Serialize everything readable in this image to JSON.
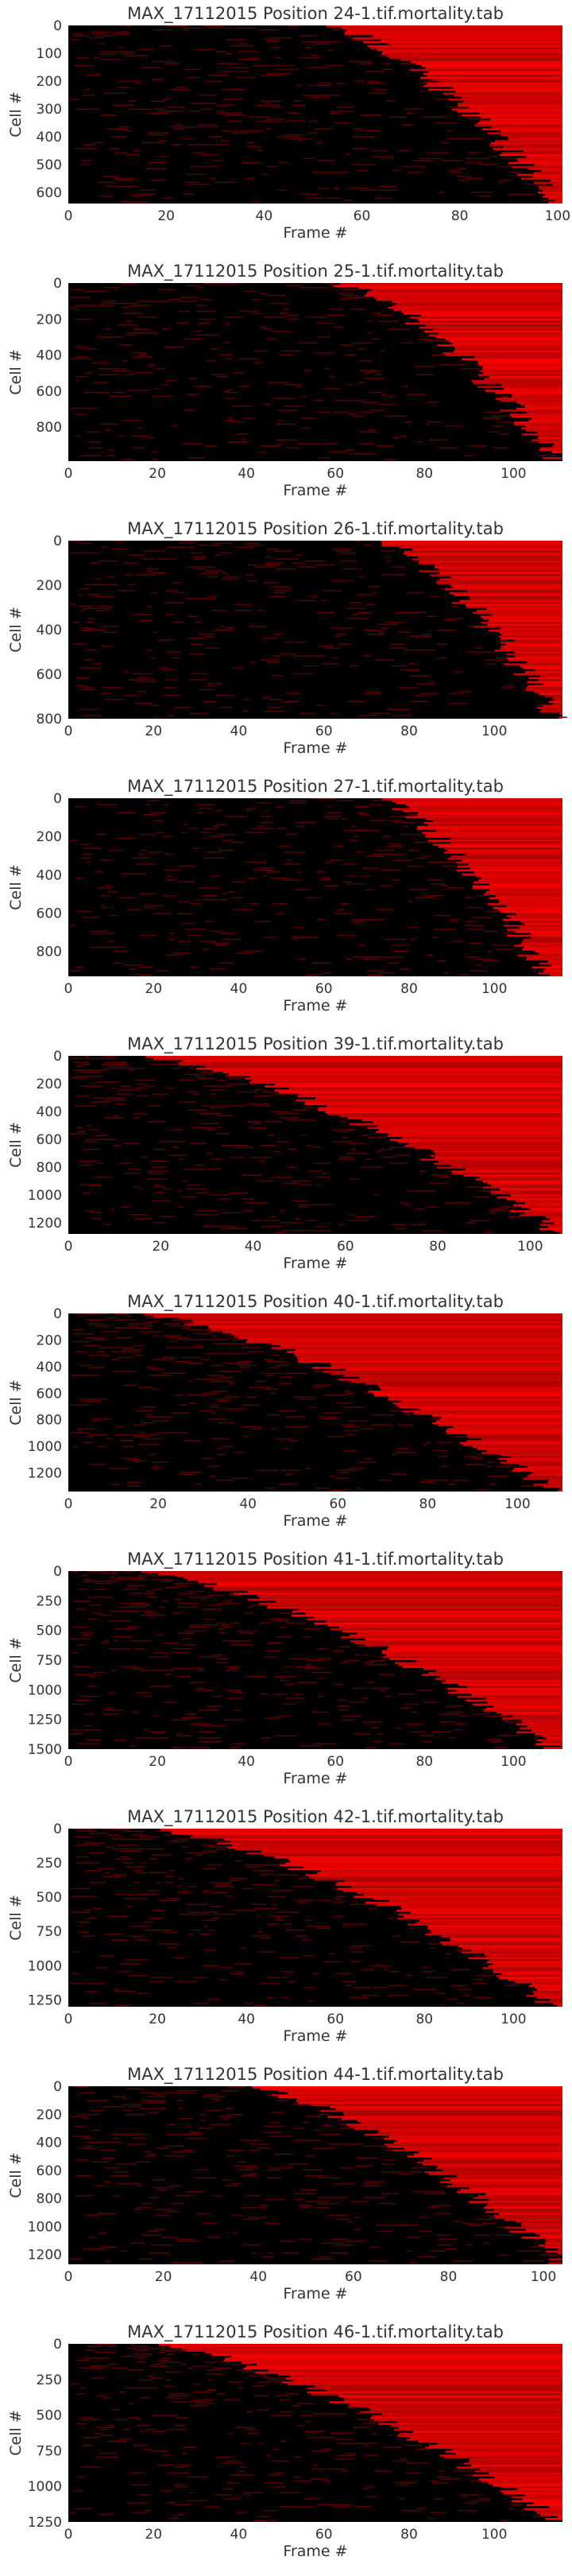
{
  "chart_data": [
    {
      "type": "heatmap",
      "title": "MAX_17112015 Position 24-1.tif.mortality.tab",
      "xlabel": "Frame #",
      "ylabel": "Cell #",
      "xlim": [
        0,
        101
      ],
      "ylim": [
        0,
        640
      ],
      "xticks": [
        0,
        20,
        40,
        60,
        80,
        100
      ],
      "yticks": [
        0,
        100,
        200,
        300,
        400,
        500,
        600
      ],
      "colormap": [
        "#000000",
        "#ff0000"
      ],
      "death_onset_frames": [
        52,
        100
      ]
    },
    {
      "type": "heatmap",
      "title": "MAX_17112015 Position 25-1.tif.mortality.tab",
      "xlabel": "Frame #",
      "ylabel": "Cell #",
      "xlim": [
        0,
        111
      ],
      "ylim": [
        0,
        990
      ],
      "xticks": [
        0,
        20,
        40,
        60,
        80,
        100
      ],
      "yticks": [
        0,
        200,
        400,
        600,
        800
      ],
      "colormap": [
        "#000000",
        "#ff0000"
      ],
      "death_onset_frames": [
        60,
        110
      ]
    },
    {
      "type": "heatmap",
      "title": "MAX_17112015 Position 26-1.tif.mortality.tab",
      "xlabel": "Frame #",
      "ylabel": "Cell #",
      "xlim": [
        0,
        116
      ],
      "ylim": [
        0,
        800
      ],
      "xticks": [
        0,
        20,
        40,
        60,
        80,
        100
      ],
      "yticks": [
        0,
        200,
        400,
        600,
        800
      ],
      "colormap": [
        "#000000",
        "#ff0000"
      ],
      "death_onset_frames": [
        72,
        115
      ]
    },
    {
      "type": "heatmap",
      "title": "MAX_17112015 Position 27-1.tif.mortality.tab",
      "xlabel": "Frame #",
      "ylabel": "Cell #",
      "xlim": [
        0,
        116
      ],
      "ylim": [
        0,
        930
      ],
      "xticks": [
        0,
        20,
        40,
        60,
        80,
        100
      ],
      "yticks": [
        0,
        200,
        400,
        600,
        800
      ],
      "colormap": [
        "#000000",
        "#ff0000"
      ],
      "death_onset_frames": [
        72,
        112
      ]
    },
    {
      "type": "heatmap",
      "title": "MAX_17112015 Position 39-1.tif.mortality.tab",
      "xlabel": "Frame #",
      "ylabel": "Cell #",
      "xlim": [
        0,
        107
      ],
      "ylim": [
        0,
        1280
      ],
      "xticks": [
        0,
        20,
        40,
        60,
        80,
        100
      ],
      "yticks": [
        0,
        200,
        400,
        600,
        800,
        1000,
        1200
      ],
      "colormap": [
        "#000000",
        "#ff0000"
      ],
      "death_onset_frames": [
        15,
        107
      ]
    },
    {
      "type": "heatmap",
      "title": "MAX_17112015 Position 40-1.tif.mortality.tab",
      "xlabel": "Frame #",
      "ylabel": "Cell #",
      "xlim": [
        0,
        110
      ],
      "ylim": [
        0,
        1340
      ],
      "xticks": [
        0,
        20,
        40,
        60,
        80,
        100
      ],
      "yticks": [
        0,
        200,
        400,
        600,
        800,
        1000,
        1200
      ],
      "colormap": [
        "#000000",
        "#ff0000"
      ],
      "death_onset_frames": [
        15,
        108
      ]
    },
    {
      "type": "heatmap",
      "title": "MAX_17112015 Position 41-1.tif.mortality.tab",
      "xlabel": "Frame #",
      "ylabel": "Cell #",
      "xlim": [
        0,
        111
      ],
      "ylim": [
        0,
        1500
      ],
      "xticks": [
        0,
        20,
        40,
        60,
        80,
        100
      ],
      "yticks": [
        0,
        250,
        500,
        750,
        1000,
        1250,
        1500
      ],
      "colormap": [
        "#000000",
        "#ff0000"
      ],
      "death_onset_frames": [
        14,
        110
      ]
    },
    {
      "type": "heatmap",
      "title": "MAX_17112015 Position 42-1.tif.mortality.tab",
      "xlabel": "Frame #",
      "ylabel": "Cell #",
      "xlim": [
        0,
        111
      ],
      "ylim": [
        0,
        1300
      ],
      "xticks": [
        0,
        20,
        40,
        60,
        80,
        100
      ],
      "yticks": [
        0,
        250,
        500,
        750,
        1000,
        1250
      ],
      "colormap": [
        "#000000",
        "#ff0000"
      ],
      "death_onset_frames": [
        18,
        110
      ]
    },
    {
      "type": "heatmap",
      "title": "MAX_17112015 Position 44-1.tif.mortality.tab",
      "xlabel": "Frame #",
      "ylabel": "Cell #",
      "xlim": [
        0,
        104
      ],
      "ylim": [
        0,
        1270
      ],
      "xticks": [
        0,
        20,
        40,
        60,
        80,
        100
      ],
      "yticks": [
        0,
        200,
        400,
        600,
        800,
        1000,
        1200
      ],
      "colormap": [
        "#000000",
        "#ff0000"
      ],
      "death_onset_frames": [
        36,
        104
      ]
    },
    {
      "type": "heatmap",
      "title": "MAX_17112015 Position 46-1.tif.mortality.tab",
      "xlabel": "Frame #",
      "ylabel": "Cell #",
      "xlim": [
        0,
        116
      ],
      "ylim": [
        0,
        1250
      ],
      "xticks": [
        0,
        20,
        40,
        60,
        80,
        100
      ],
      "yticks": [
        0,
        250,
        500,
        750,
        1000,
        1250
      ],
      "colormap": [
        "#000000",
        "#ff0000"
      ],
      "death_onset_frames": [
        18,
        115
      ]
    }
  ]
}
